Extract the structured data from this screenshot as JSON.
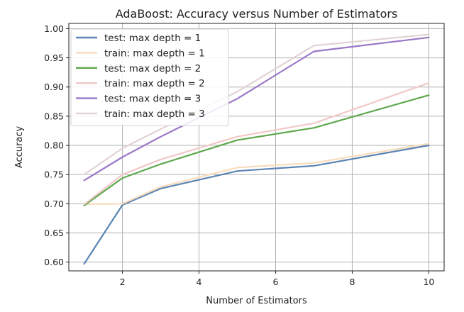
{
  "chart_data": {
    "type": "line",
    "title": "AdaBoost: Accuracy versus Number of Estimators",
    "xlabel": "Number of Estimators",
    "ylabel": "Accuracy",
    "xlim": [
      0.6,
      10.4
    ],
    "ylim": [
      0.585,
      1.009
    ],
    "xticks": [
      2,
      4,
      6,
      8,
      10
    ],
    "yticks": [
      0.6,
      0.65,
      0.7,
      0.75,
      0.8,
      0.85,
      0.9,
      0.95,
      1.0
    ],
    "grid": true,
    "legend_position": "upper-left",
    "x": [
      1,
      2,
      3,
      5,
      7,
      10
    ],
    "series": [
      {
        "name": "test: max depth = 1",
        "color": "#5b85b3",
        "values": [
          0.597,
          0.698,
          0.726,
          0.756,
          0.765,
          0.8
        ]
      },
      {
        "name": "train: max depth = 1",
        "color": "#f8dcbc",
        "values": [
          0.699,
          0.7,
          0.729,
          0.762,
          0.77,
          0.803
        ]
      },
      {
        "name": "test: max depth = 2",
        "color": "#5fa84e",
        "values": [
          0.697,
          0.744,
          0.768,
          0.809,
          0.83,
          0.886
        ]
      },
      {
        "name": "train: max depth = 2",
        "color": "#f0c8c8",
        "values": [
          0.699,
          0.75,
          0.776,
          0.815,
          0.838,
          0.907
        ]
      },
      {
        "name": "test: max depth = 3",
        "color": "#9a78c8",
        "values": [
          0.74,
          0.78,
          0.815,
          0.88,
          0.961,
          0.985
        ]
      },
      {
        "name": "train: max depth = 3",
        "color": "#e2d3d3",
        "values": [
          0.75,
          0.795,
          0.828,
          0.892,
          0.971,
          0.99
        ]
      }
    ]
  }
}
